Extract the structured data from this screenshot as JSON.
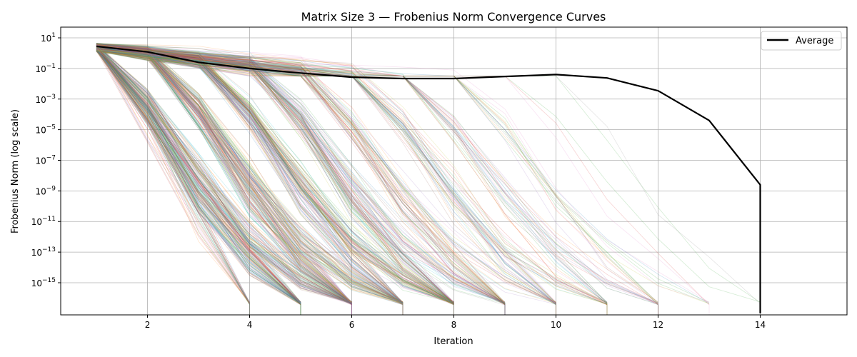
{
  "chart_data": {
    "type": "line",
    "title": "Matrix Size 3 — Frobenius Norm Convergence Curves",
    "xlabel": "Iteration",
    "ylabel": "Frobenius Norm (log scale)",
    "y_scale": "log",
    "xlim": [
      0.3,
      15.7
    ],
    "ylim_log10": [
      -17.1,
      1.7
    ],
    "x_ticks": [
      2,
      4,
      6,
      8,
      10,
      12,
      14
    ],
    "y_tick_exponents": [
      1,
      -1,
      -3,
      -5,
      -7,
      -9,
      -11,
      -13,
      -15
    ],
    "y_tick_base": "10",
    "grid": true,
    "legend_position": "top-right",
    "legend": [
      "Average"
    ],
    "series": [
      {
        "name": "Average",
        "color": "#000000",
        "x": [
          1,
          2,
          3,
          4,
          5,
          6,
          7,
          8,
          9,
          10,
          11,
          12,
          13,
          14,
          14
        ],
        "y": [
          2.8,
          1.2,
          0.25,
          0.1,
          0.05,
          0.027,
          0.022,
          0.022,
          0.03,
          0.04,
          0.024,
          0.0035,
          4e-05,
          2.5e-09,
          1e-17
        ]
      }
    ],
    "individual_runs": {
      "color_cycle": [
        "#1f77b4",
        "#ff7f0e",
        "#2ca02c",
        "#d62728",
        "#9467bd",
        "#8c564b",
        "#e377c2",
        "#7f7f7f",
        "#bcbd22",
        "#17becf"
      ],
      "opacity": 0.2
    }
  }
}
